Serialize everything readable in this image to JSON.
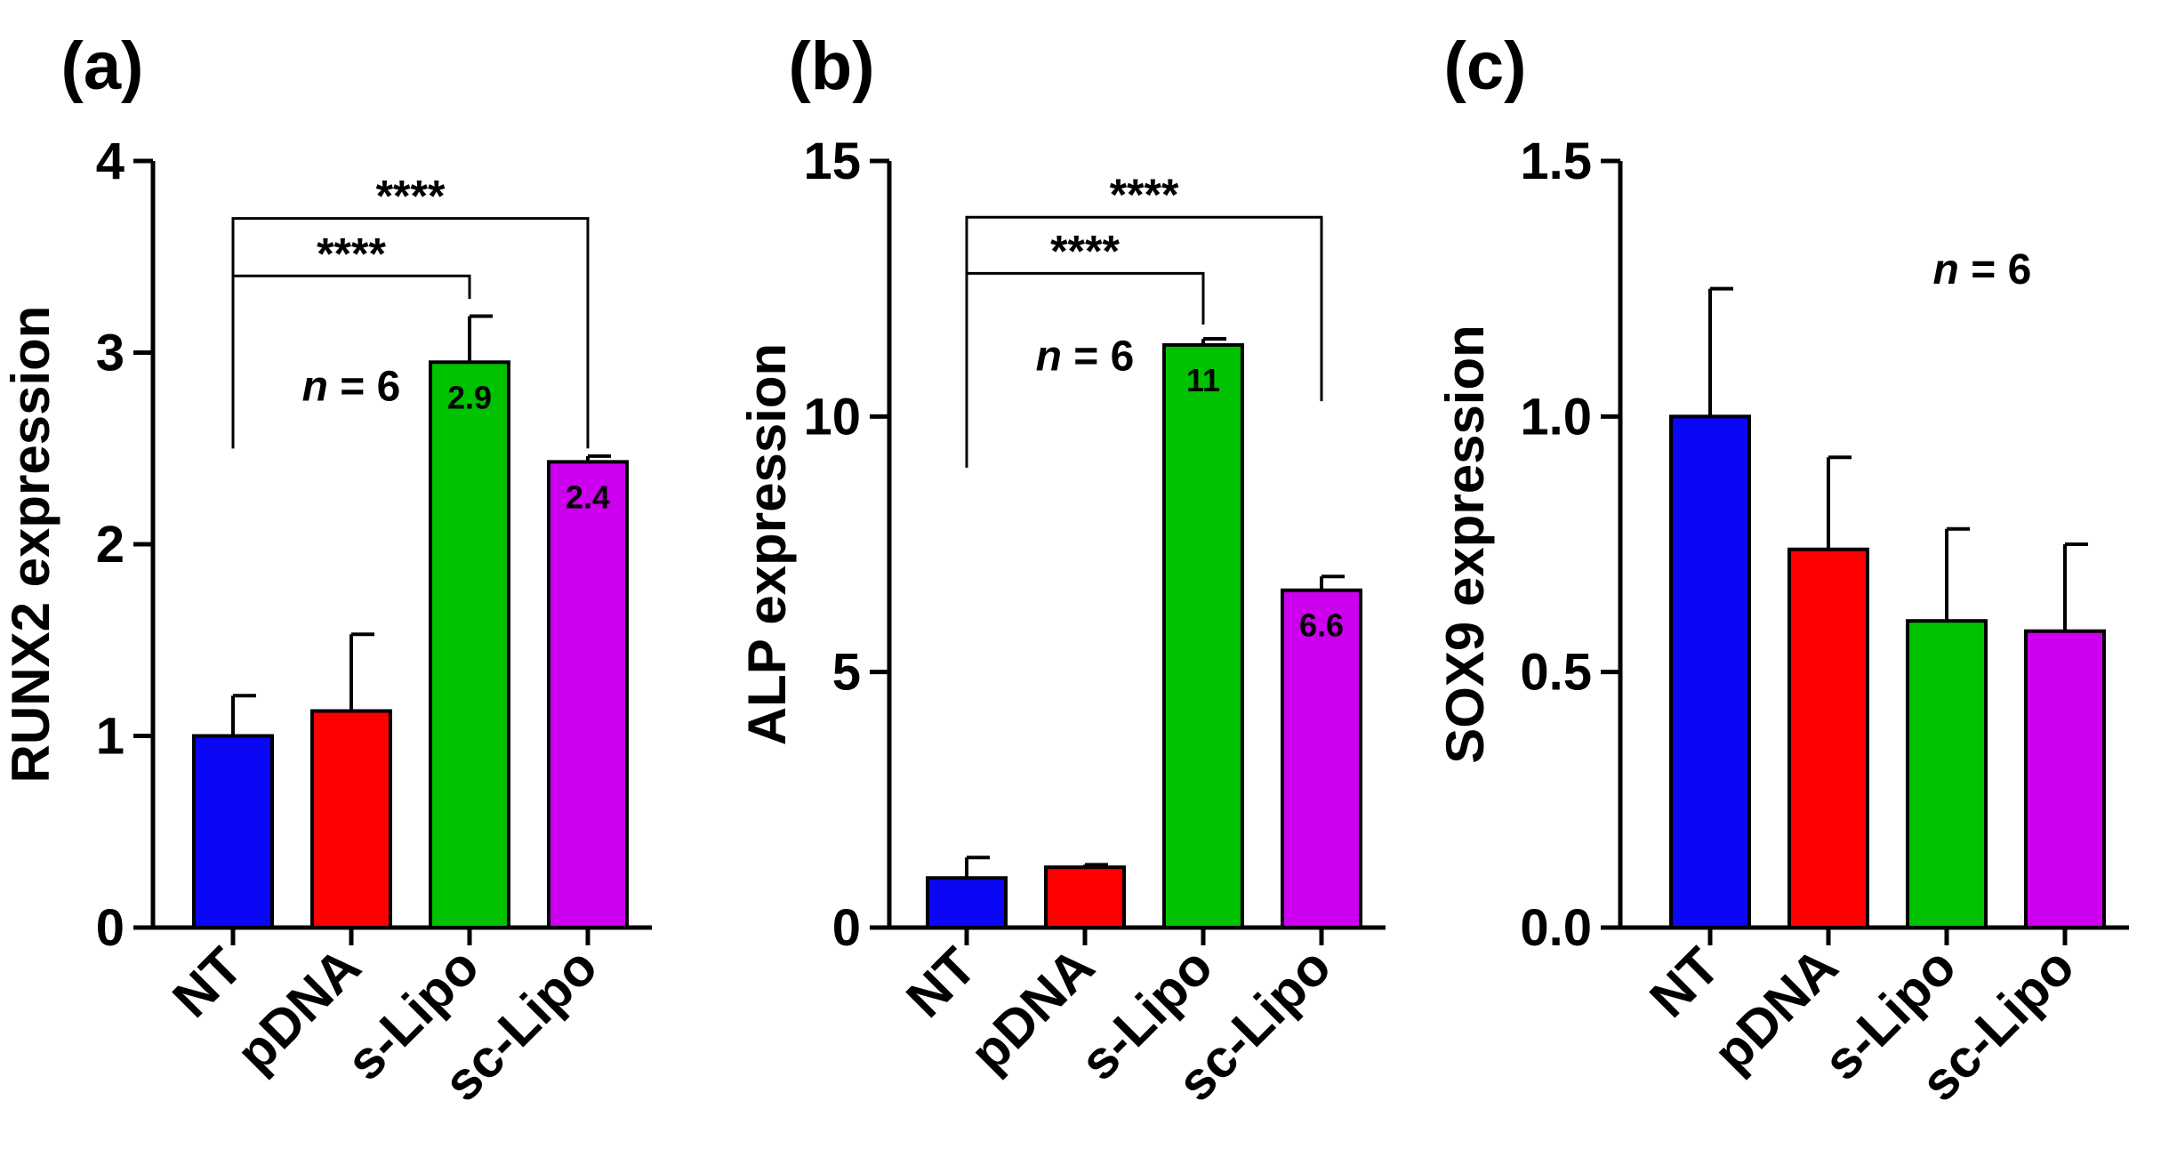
{
  "chart_data": [
    {
      "panel_label": "(a)",
      "type": "bar",
      "categories": [
        "NT",
        "pDNA",
        "s-Lipo",
        "sc-Lipo"
      ],
      "values": [
        1.0,
        1.13,
        2.95,
        2.43
      ],
      "errors": [
        0.21,
        0.4,
        0.24,
        0.03
      ],
      "colors": [
        "#0a07f5",
        "#fe0000",
        "#00c200",
        "#cc00ee"
      ],
      "bar_labels": [
        "",
        "",
        "2.9",
        "2.4"
      ],
      "ylabel": "RUNX2 expression",
      "xlabel": "",
      "ylim": [
        0,
        4
      ],
      "yticks": [
        0,
        1,
        2,
        3,
        4
      ],
      "ytick_labels": [
        "0",
        "1",
        "2",
        "3",
        "4"
      ],
      "annotation": {
        "italic": "n",
        "rest": " = 6",
        "x_pos": 1.0,
        "y": 2.75
      },
      "significance": [
        {
          "from": 0,
          "to": 2,
          "label": "****",
          "y": 3.4,
          "drop_from": 2.5,
          "drop_to": 3.28
        },
        {
          "from": 0,
          "to": 3,
          "label": "****",
          "y": 3.7,
          "drop_from": 2.5,
          "drop_to": 2.5
        }
      ]
    },
    {
      "panel_label": "(b)",
      "type": "bar",
      "categories": [
        "NT",
        "pDNA",
        "s-Lipo",
        "sc-Lipo"
      ],
      "values": [
        0.97,
        1.18,
        11.4,
        6.6
      ],
      "errors": [
        0.4,
        0.05,
        0.12,
        0.27
      ],
      "colors": [
        "#0a07f5",
        "#fe0000",
        "#00c200",
        "#cc00ee"
      ],
      "bar_labels": [
        "",
        "",
        "11",
        "6.6"
      ],
      "ylabel": "ALP expression",
      "xlabel": "",
      "ylim": [
        0,
        15
      ],
      "yticks": [
        0,
        5,
        10,
        15
      ],
      "ytick_labels": [
        "0",
        "5",
        "10",
        "15"
      ],
      "annotation": {
        "italic": "n",
        "rest": " = 6",
        "x_pos": 1.0,
        "y": 10.9
      },
      "significance": [
        {
          "from": 0,
          "to": 2,
          "label": "****",
          "y": 12.8,
          "drop_from": 9.0,
          "drop_to": 11.8
        },
        {
          "from": 0,
          "to": 3,
          "label": "****",
          "y": 13.9,
          "drop_from": 9.0,
          "drop_to": 10.3
        }
      ]
    },
    {
      "panel_label": "(c)",
      "type": "bar",
      "categories": [
        "NT",
        "pDNA",
        "s-Lipo",
        "sc-Lipo"
      ],
      "values": [
        1.0,
        0.74,
        0.6,
        0.58
      ],
      "errors": [
        0.25,
        0.18,
        0.18,
        0.17
      ],
      "colors": [
        "#0a07f5",
        "#fe0000",
        "#00c200",
        "#cc00ee"
      ],
      "bar_labels": [
        "",
        "",
        "",
        ""
      ],
      "ylabel": "SOX9 expression",
      "xlabel": "",
      "ylim": [
        0,
        1.5
      ],
      "yticks": [
        0,
        0.5,
        1.0,
        1.5
      ],
      "ytick_labels": [
        "0.0",
        "0.5",
        "1.0",
        "1.5"
      ],
      "annotation": {
        "italic": "n",
        "rest": " = 6",
        "x_pos": 2.3,
        "y": 1.26
      },
      "significance": []
    }
  ]
}
